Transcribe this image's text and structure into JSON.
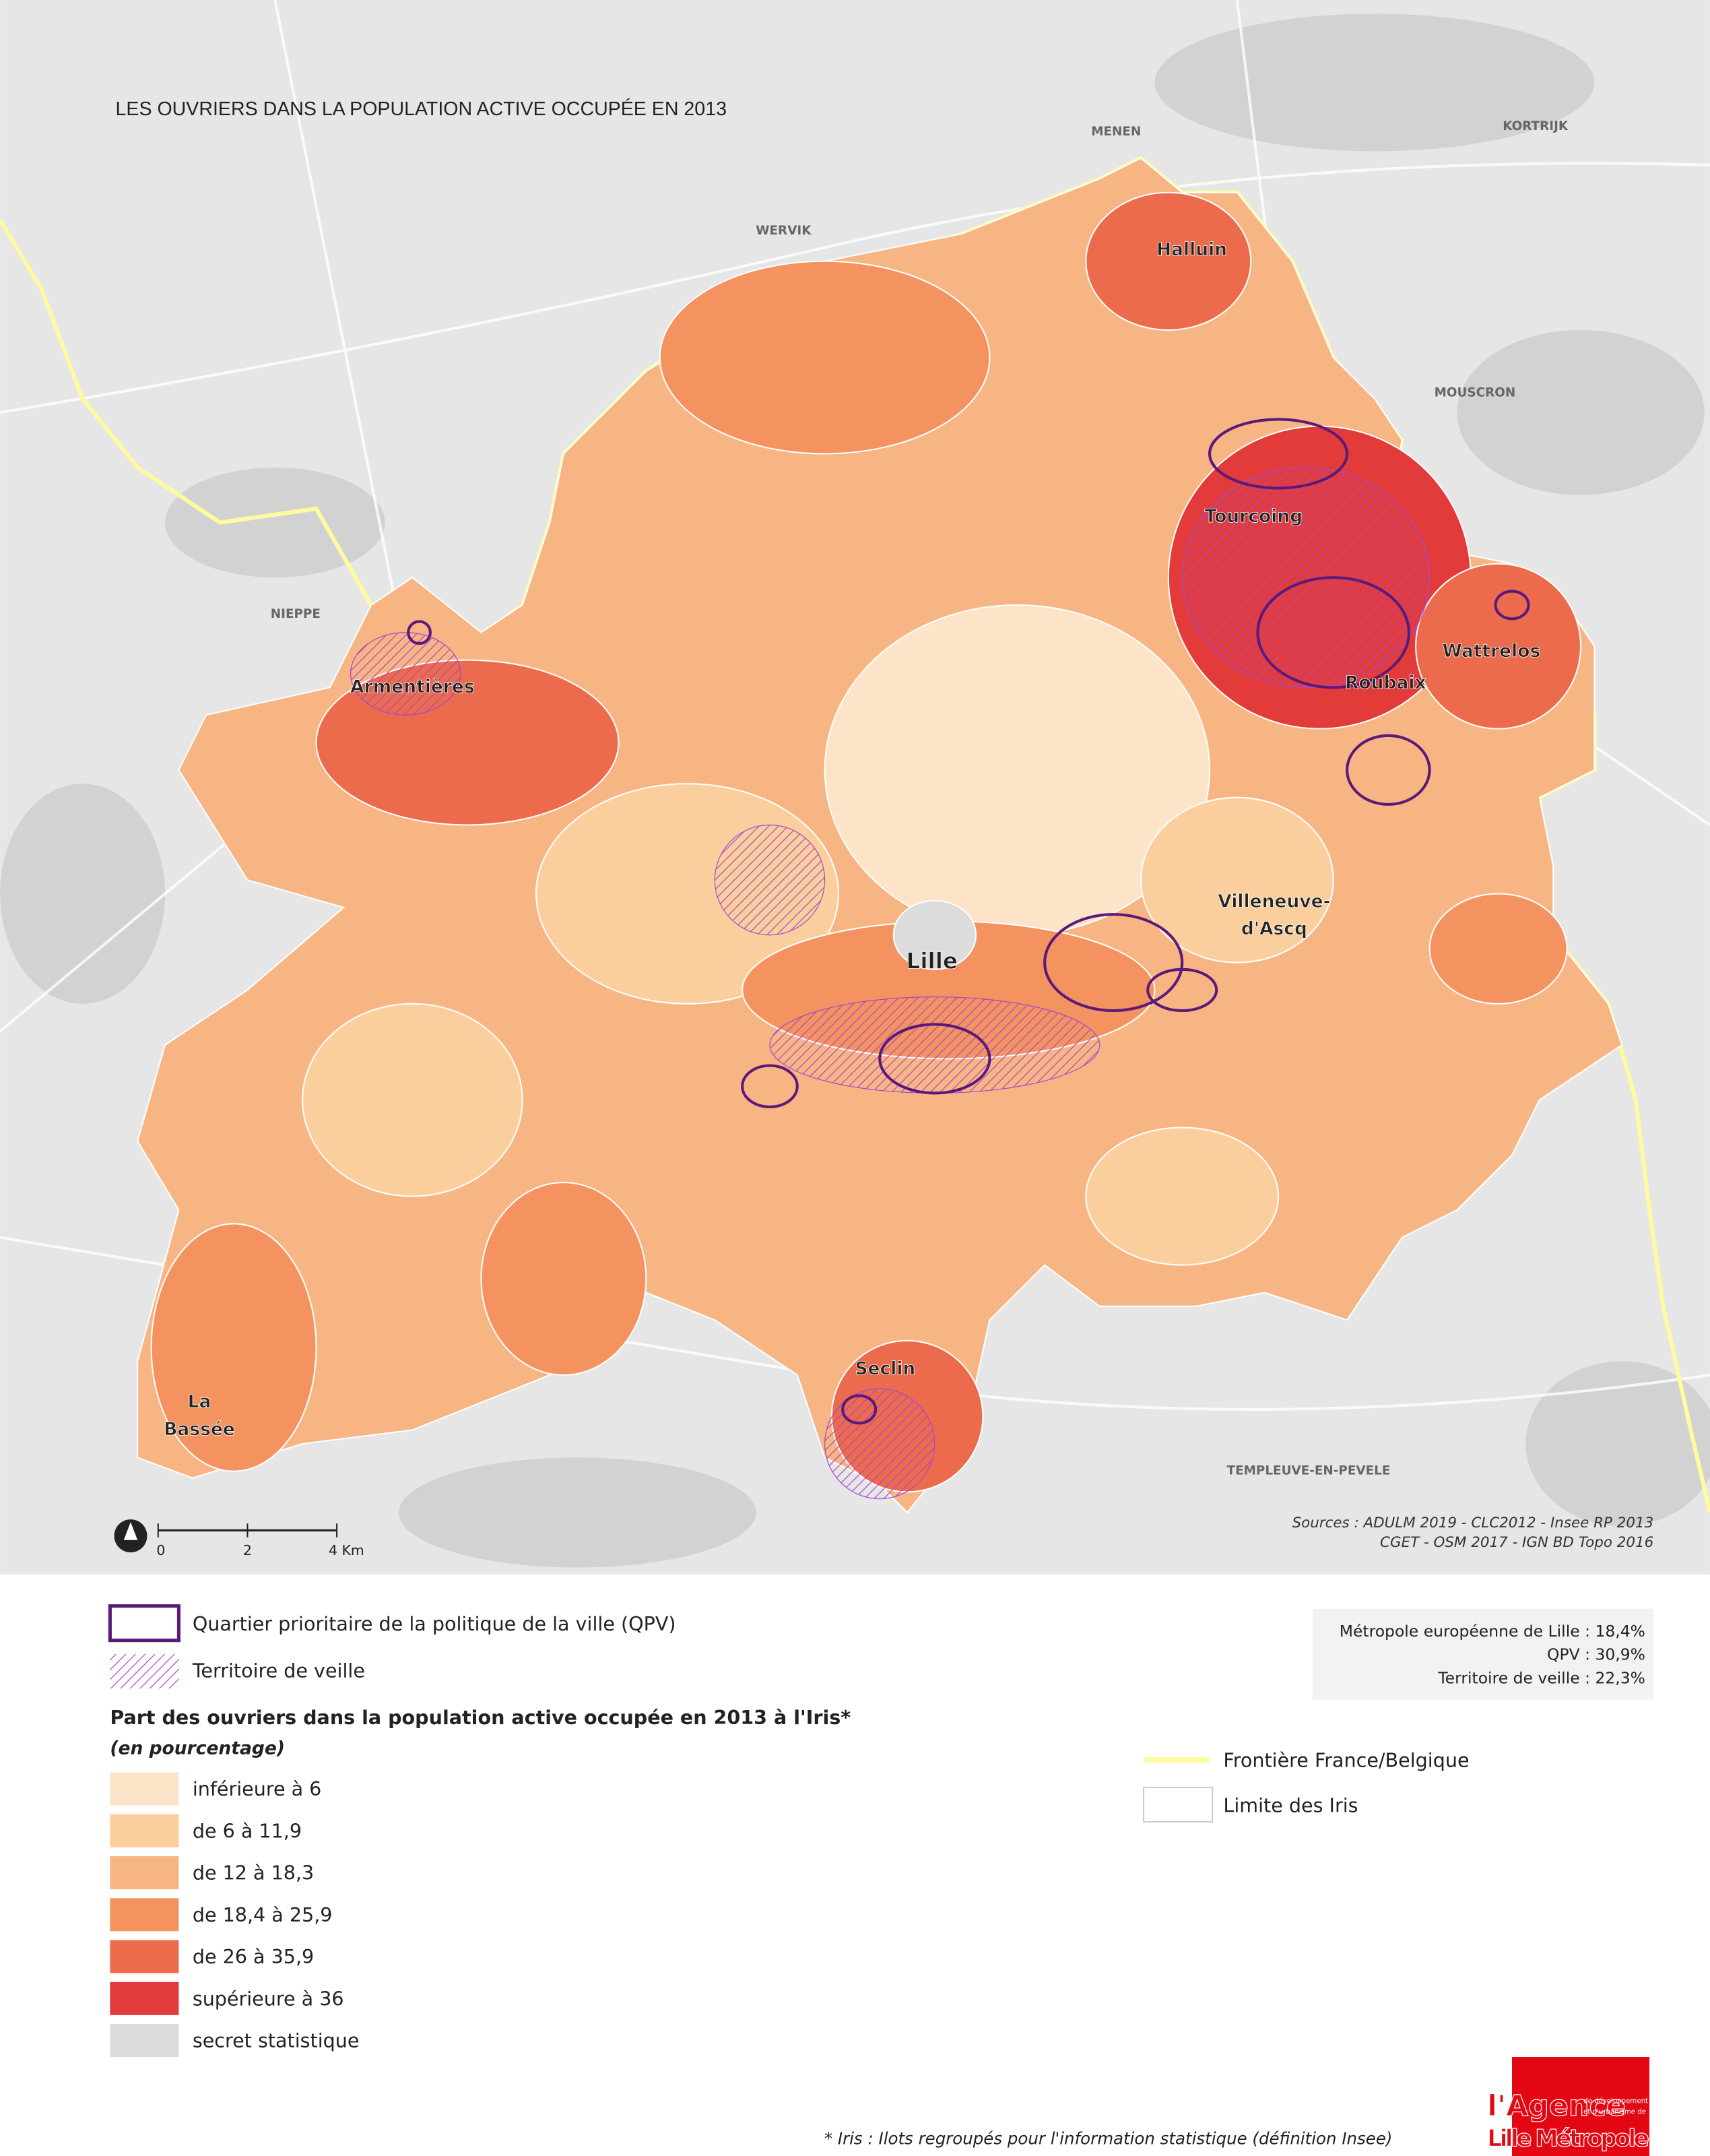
{
  "title": "LES OUVRIERS DANS LA POPULATION ACTIVE OCCUPÉE EN 2013",
  "places": [
    "MENEN",
    "KORTRIJK",
    "WERVIK",
    "MOUSCRON",
    "NIEPPE",
    "TEMPLEUVE-EN-PEVELE"
  ],
  "cities": [
    "Halluin",
    "Tourcoing",
    "Armentières",
    "Wattrelos",
    "Roubaix",
    "Lille",
    "Villeneuve-",
    "d'Ascq",
    "Seclin",
    "La",
    "Bassée"
  ],
  "scale": [
    "0",
    "2",
    "4 Km"
  ],
  "sources": [
    "Sources : ADULM 2019 - CLC2012 - Insee RP 2013",
    "CGET - OSM 2017 - IGN BD Topo 2016"
  ],
  "legend": {
    "qpv": "Quartier prioritaire de la politique de la ville (QPV)",
    "veille": "Territoire de veille",
    "heading": "Part des ouvriers dans la population active occupée en 2013 à l'Iris*",
    "subheading": "(en pourcentage)",
    "classes": [
      {
        "label": "inférieure à 6",
        "color": "#fde3c8"
      },
      {
        "label": "de 6 à 11,9",
        "color": "#fbcf9d"
      },
      {
        "label": "de 12 à 18,3",
        "color": "#f8b584"
      },
      {
        "label": "de 18,4 à 25,9",
        "color": "#f4935f"
      },
      {
        "label": "de 26 à 35,9",
        "color": "#ec6b4c"
      },
      {
        "label": "supérieure à 36",
        "color": "#e33a3a"
      },
      {
        "label": "secret statistique",
        "color": "#dcdcdc"
      }
    ],
    "border": "Frontière France/Belgique",
    "iris": "Limite des Iris"
  },
  "stats": [
    "Métropole européenne de Lille : 18,4%",
    "QPV : 30,9%",
    "Territoire de veille : 22,3%"
  ],
  "footnote": "* Iris : Ilots regroupés pour l'information statistique (définition Insee)",
  "logo": [
    "l'Agence",
    "Lille Métropole",
    "de développement",
    "et d'urbanisme de"
  ]
}
